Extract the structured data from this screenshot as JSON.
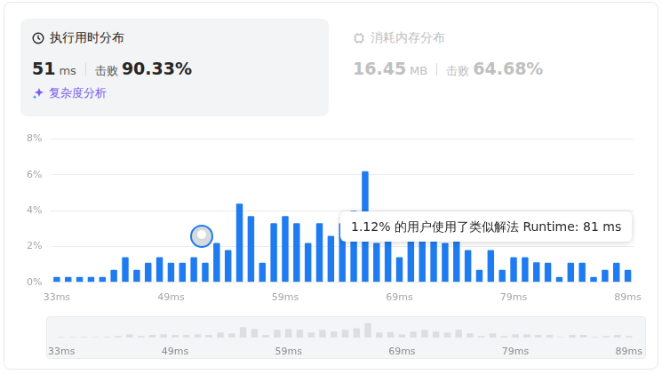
{
  "header": {
    "runtime": {
      "title": "执行用时分布",
      "value": "51",
      "unit": "ms",
      "beat_label": "击败",
      "beat": "90.33%",
      "analysis": "复杂度分析"
    },
    "memory": {
      "title": "消耗内存分布",
      "value": "16.45",
      "unit": "MB",
      "beat_label": "击败",
      "beat": "64.68%"
    }
  },
  "chart_data": {
    "type": "bar",
    "categories": [
      "33ms",
      null,
      null,
      null,
      null,
      null,
      null,
      null,
      null,
      null,
      "49ms",
      null,
      null,
      null,
      null,
      null,
      null,
      null,
      null,
      null,
      "59ms",
      null,
      null,
      null,
      null,
      null,
      null,
      null,
      null,
      null,
      "69ms",
      null,
      null,
      null,
      null,
      null,
      null,
      null,
      null,
      null,
      "79ms",
      null,
      null,
      null,
      null,
      null,
      null,
      null,
      null,
      null,
      "89ms"
    ],
    "values": [
      0.3,
      0.3,
      0.3,
      0.3,
      0.3,
      0.7,
      1.4,
      0.7,
      1.1,
      1.4,
      1.1,
      1.1,
      1.4,
      1.1,
      2.2,
      1.8,
      4.4,
      3.7,
      1.1,
      3.3,
      3.7,
      3.3,
      2.2,
      3.3,
      2.6,
      3.3,
      4.0,
      6.2,
      2.2,
      2.4,
      1.4,
      2.6,
      3.3,
      2.6,
      2.2,
      3.3,
      1.8,
      0.7,
      1.8,
      0.7,
      1.4,
      1.4,
      1.12,
      1.1,
      0.3,
      1.1,
      1.1,
      0.3,
      0.7,
      1.1,
      0.7
    ],
    "color": "#1e7cf0",
    "ylim": [
      0,
      8
    ],
    "yticks": [
      {
        "value": 0,
        "label": "0%"
      },
      {
        "value": 2,
        "label": "2%"
      },
      {
        "value": 4,
        "label": "4%"
      },
      {
        "value": 6,
        "label": "6%"
      },
      {
        "value": 8,
        "label": "8%"
      }
    ],
    "grid": true,
    "annotations": [
      "1.12% 的用户使用了类似解法 Runtime: 81 ms"
    ]
  }
}
